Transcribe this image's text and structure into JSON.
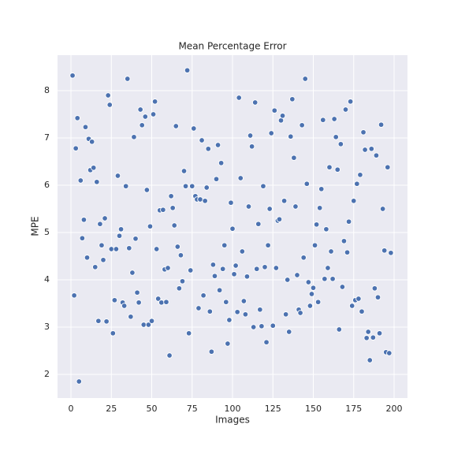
{
  "chart_data": {
    "type": "scatter",
    "title": "Mean Percentage Error",
    "x_label": "Images",
    "y_label": "MPE",
    "color": "#4c72b0",
    "grid": true,
    "xlim": [
      -8.3,
      208.3
    ],
    "ylim": [
      1.5,
      8.75
    ],
    "xticks": [
      0,
      25,
      50,
      75,
      100,
      125,
      150,
      175,
      200
    ],
    "yticks": [
      2,
      3,
      4,
      5,
      6,
      7,
      8
    ],
    "x": [
      1,
      2,
      3,
      4,
      5,
      6,
      7,
      8,
      9,
      10,
      11,
      12,
      13,
      14,
      15,
      16,
      17,
      18,
      19,
      20,
      21,
      22,
      23,
      24,
      25,
      26,
      27,
      28,
      29,
      30,
      31,
      32,
      33,
      34,
      35,
      36,
      37,
      38,
      39,
      40,
      41,
      42,
      43,
      44,
      45,
      46,
      47,
      48,
      49,
      50,
      51,
      52,
      53,
      54,
      55,
      56,
      57,
      58,
      59,
      60,
      61,
      62,
      63,
      64,
      65,
      66,
      67,
      68,
      69,
      70,
      71,
      72,
      73,
      74,
      75,
      76,
      77,
      78,
      79,
      80,
      81,
      82,
      83,
      84,
      85,
      86,
      87,
      88,
      89,
      90,
      91,
      92,
      93,
      94,
      95,
      96,
      97,
      98,
      99,
      100,
      101,
      102,
      103,
      104,
      105,
      106,
      107,
      108,
      109,
      110,
      111,
      112,
      113,
      114,
      115,
      116,
      117,
      118,
      119,
      120,
      121,
      122,
      123,
      124,
      125,
      126,
      127,
      128,
      129,
      130,
      131,
      132,
      133,
      134,
      135,
      136,
      137,
      138,
      139,
      140,
      141,
      142,
      143,
      144,
      145,
      146,
      147,
      148,
      149,
      150,
      151,
      152,
      153,
      154,
      155,
      156,
      157,
      158,
      159,
      160,
      161,
      162,
      163,
      164,
      165,
      166,
      167,
      168,
      169,
      170,
      171,
      172,
      173,
      174,
      175,
      176,
      177,
      178,
      179,
      180,
      181,
      182,
      183,
      184,
      185,
      186,
      187,
      188,
      189,
      190,
      191,
      192,
      193,
      194,
      195,
      196,
      197,
      198
    ],
    "values": [
      8.32,
      3.67,
      6.78,
      7.42,
      1.85,
      6.1,
      4.88,
      5.27,
      7.23,
      4.47,
      6.98,
      6.32,
      6.92,
      6.37,
      4.27,
      6.07,
      3.13,
      5.18,
      4.73,
      4.42,
      5.3,
      3.12,
      7.9,
      7.7,
      4.65,
      2.87,
      3.57,
      4.65,
      6.2,
      4.93,
      5.07,
      3.52,
      3.45,
      5.98,
      8.25,
      4.67,
      3.22,
      4.15,
      7.02,
      4.87,
      3.73,
      3.52,
      7.6,
      7.27,
      3.05,
      7.45,
      5.9,
      3.05,
      5.13,
      3.13,
      7.5,
      7.77,
      4.65,
      3.6,
      5.47,
      3.52,
      5.48,
      4.22,
      3.53,
      4.25,
      2.4,
      5.77,
      5.52,
      5.15,
      7.25,
      4.7,
      3.82,
      4.52,
      3.97,
      6.3,
      5.98,
      8.43,
      2.87,
      4.2,
      5.98,
      7.2,
      5.77,
      5.7,
      3.4,
      5.7,
      6.95,
      3.67,
      5.67,
      5.95,
      6.77,
      3.33,
      2.48,
      4.32,
      4.08,
      6.13,
      6.85,
      3.78,
      6.47,
      4.23,
      4.73,
      3.53,
      2.65,
      3.15,
      5.63,
      5.08,
      4.12,
      4.3,
      3.32,
      7.85,
      6.15,
      4.6,
      3.55,
      3.27,
      4.07,
      5.55,
      7.05,
      6.82,
      3.0,
      7.75,
      4.23,
      5.18,
      3.37,
      3.02,
      5.98,
      4.27,
      2.68,
      4.73,
      5.5,
      7.1,
      3.03,
      7.58,
      4.25,
      5.25,
      5.28,
      7.37,
      7.47,
      5.67,
      3.27,
      4.0,
      2.9,
      7.03,
      7.82,
      6.58,
      5.55,
      4.1,
      3.37,
      3.3,
      7.27,
      4.47,
      8.25,
      6.03,
      3.95,
      3.45,
      3.7,
      3.83,
      4.73,
      5.17,
      3.53,
      5.52,
      5.92,
      7.38,
      4.02,
      5.07,
      4.25,
      6.38,
      4.6,
      4.02,
      7.4,
      7.02,
      6.33,
      2.95,
      6.87,
      3.85,
      4.82,
      7.6,
      4.58,
      5.23,
      7.77,
      3.45,
      5.67,
      3.57,
      6.03,
      3.6,
      6.22,
      3.33,
      7.12,
      6.75,
      2.77,
      2.9,
      2.3,
      6.77,
      2.78,
      3.82,
      6.63,
      3.63,
      2.87,
      7.28,
      5.5,
      4.62,
      2.47,
      6.38,
      2.45,
      4.57
    ]
  }
}
